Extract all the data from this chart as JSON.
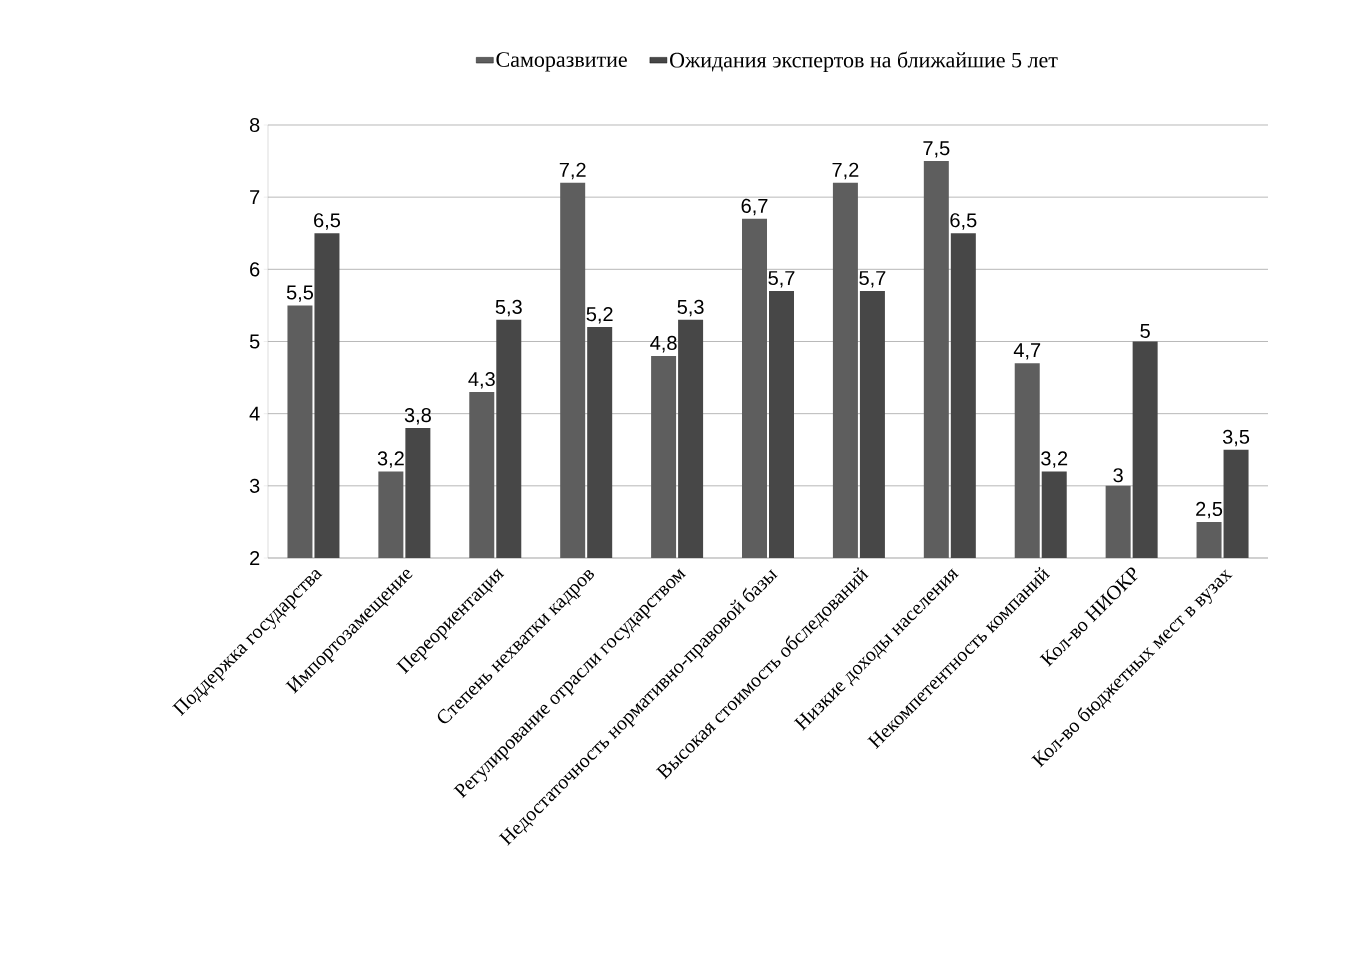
{
  "chart_data": {
    "type": "bar",
    "categories": [
      "Поддержка государства",
      "Импортозамещение",
      "Переориентация",
      "Степень нехватки кадров",
      "Регулирование отрасли государством",
      "Недостаточность нормативно-правовой базы",
      "Высокая стоимость обследований",
      "Низкие доходы населения",
      "Некомпетентность компаний",
      "Кол-во НИОКР",
      "Кол-во бюджетных мест в вузах"
    ],
    "series": [
      {
        "name": "Саморазвитие",
        "color": "#5e5e5e",
        "values": [
          5.5,
          3.2,
          4.3,
          7.2,
          4.8,
          6.7,
          7.2,
          7.5,
          4.7,
          3,
          2.5
        ],
        "value_labels": [
          "5,5",
          "3,2",
          "4,3",
          "7,2",
          "4,8",
          "6,7",
          "7,2",
          "7,5",
          "4,7",
          "3",
          "2,5"
        ]
      },
      {
        "name": "Ожидания экспертов на ближайшие 5 лет",
        "color": "#474747",
        "values": [
          6.5,
          3.8,
          5.3,
          5.2,
          5.3,
          5.7,
          5.7,
          6.5,
          3.2,
          5,
          3.5
        ],
        "value_labels": [
          "6,5",
          "3,8",
          "5,3",
          "5,2",
          "5,3",
          "5,7",
          "5,7",
          "6,5",
          "3,2",
          "5",
          "3,5"
        ]
      }
    ],
    "ylim": [
      2,
      8
    ],
    "yticks": [
      2,
      3,
      4,
      5,
      6,
      7,
      8
    ],
    "grid": "y",
    "legend": "top"
  }
}
